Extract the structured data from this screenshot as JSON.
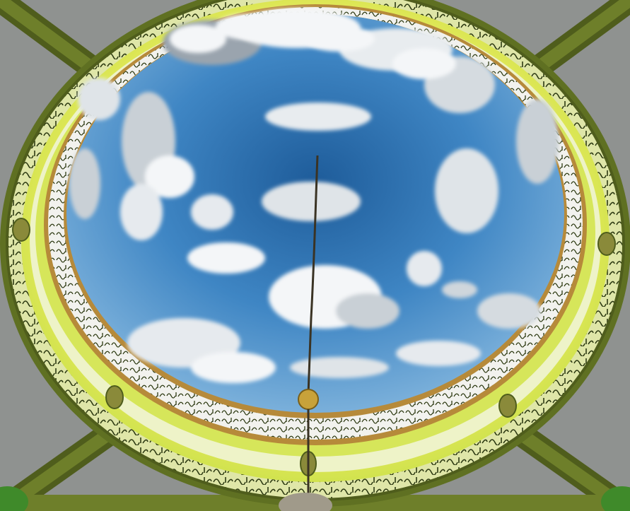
{
  "image": {
    "subject": "dome-ceiling",
    "colors": {
      "ceiling_grey": "#8f9290",
      "beam_olive": "#6e7f2a",
      "beam_dark": "#4f5d1c",
      "ring_lime": "#c9e04a",
      "ring_yellow": "#e6ea5a",
      "band_white": "#f2f2ee",
      "band_gold": "#b68a3a",
      "calligraphy_dark": "#2d3a12",
      "sky_light": "#7fb3dc",
      "sky_mid": "#3f86c4",
      "sky_deep": "#1e5c9a",
      "cloud_white": "#f4f6f8",
      "cloud_shadow": "#9aa4ae",
      "chandelier_gold": "#c8a23a",
      "chain": "#3a3324"
    }
  }
}
